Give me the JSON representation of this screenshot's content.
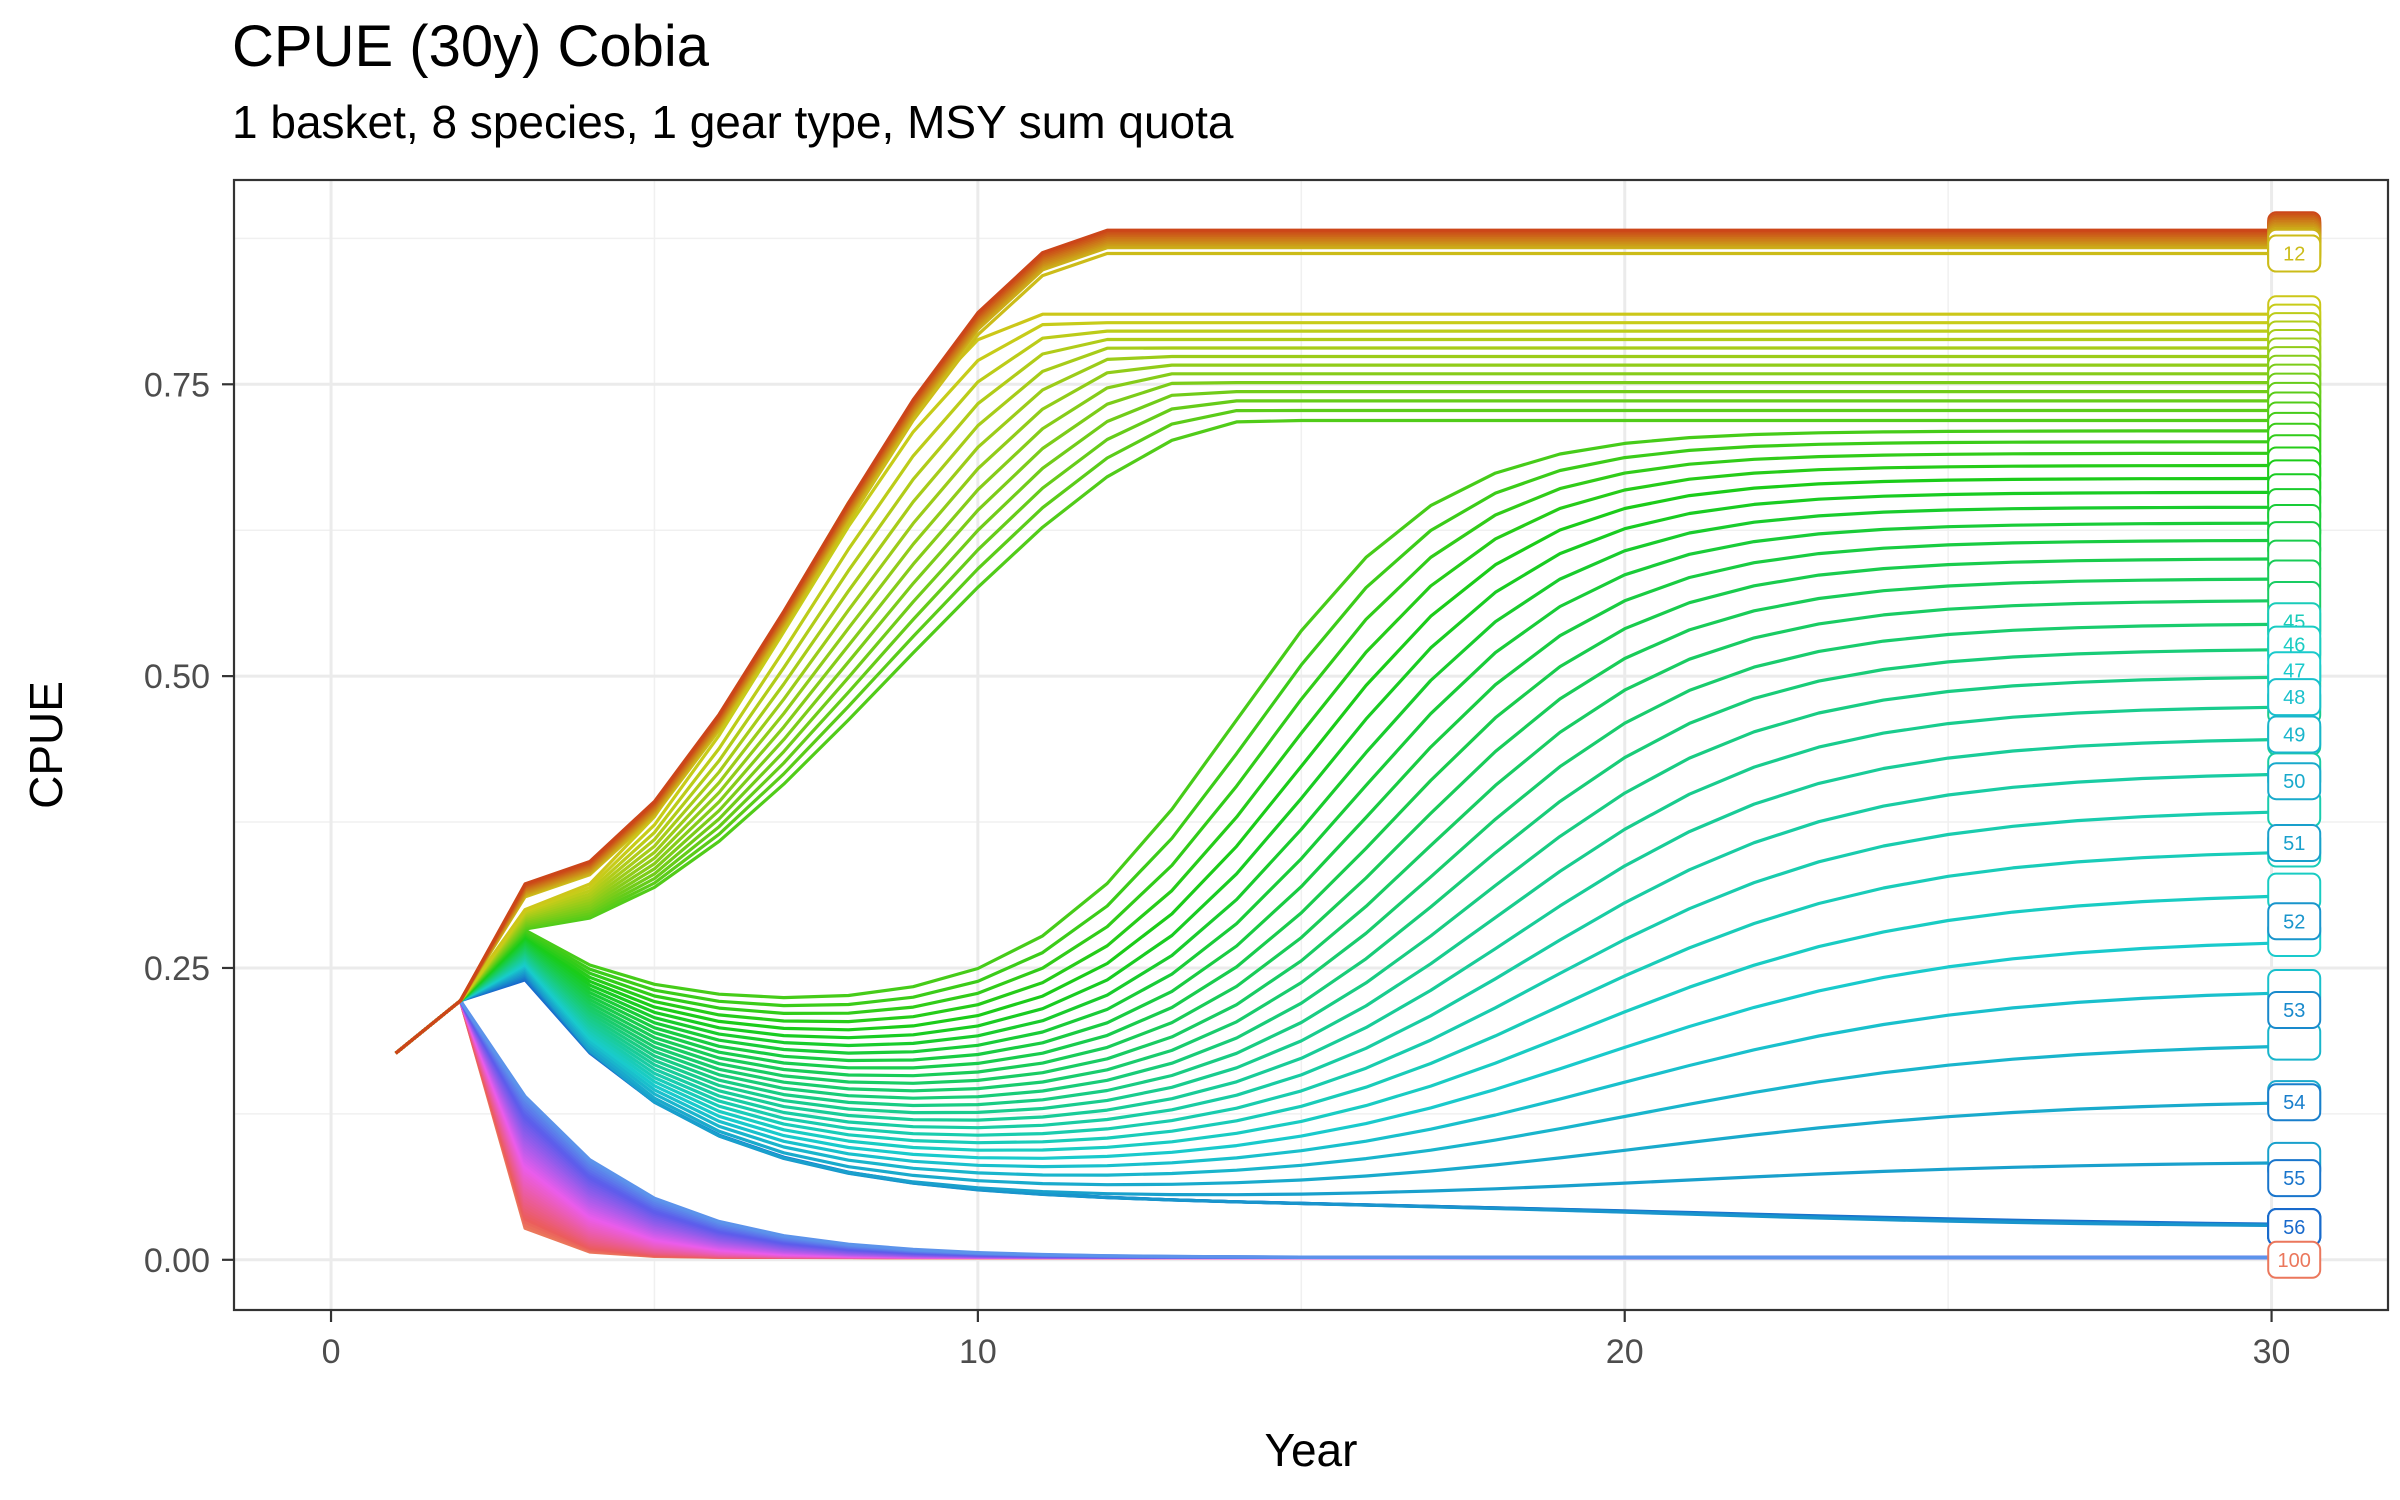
{
  "chart_data": {
    "type": "line",
    "title": "CPUE (30y) Cobia",
    "subtitle": "1 basket, 8 species, 1 gear type, MSY sum quota",
    "xlabel": "Year",
    "ylabel": "CPUE",
    "xlim": [
      -1.5,
      31.8
    ],
    "ylim": [
      -0.043,
      0.925
    ],
    "x_ticks": [
      0,
      10,
      20,
      30
    ],
    "y_ticks": [
      0.0,
      0.25,
      0.5,
      0.75
    ],
    "x_tick_labels": [
      "0",
      "10",
      "20",
      "30"
    ],
    "y_tick_labels": [
      "0.00",
      "0.25",
      "0.50",
      "0.75"
    ],
    "grid": true,
    "legend": "none",
    "color_scale": "hue (per scenario)",
    "x_years": [
      1,
      30
    ],
    "series_shape_notes": "100 scenario lines; shown end labels numbered",
    "series": [
      {
        "name": "12",
        "final": 0.862
      },
      {
        "name": "45",
        "final": 0.547
      },
      {
        "name": "46",
        "final": 0.527
      },
      {
        "name": "47",
        "final": 0.505
      },
      {
        "name": "48",
        "final": 0.482
      },
      {
        "name": "49",
        "final": 0.45
      },
      {
        "name": "50",
        "final": 0.41
      },
      {
        "name": "51",
        "final": 0.357
      },
      {
        "name": "52",
        "final": 0.29
      },
      {
        "name": "53",
        "final": 0.214
      },
      {
        "name": "54",
        "final": 0.135
      },
      {
        "name": "55",
        "final": 0.07
      },
      {
        "name": "56",
        "final": 0.028
      },
      {
        "name": "100",
        "final": 0.0
      }
    ],
    "end_labels": [
      "12",
      "45",
      "46",
      "47",
      "48",
      "49",
      "50",
      "51",
      "52",
      "53",
      "54",
      "55",
      "56",
      "100"
    ]
  }
}
